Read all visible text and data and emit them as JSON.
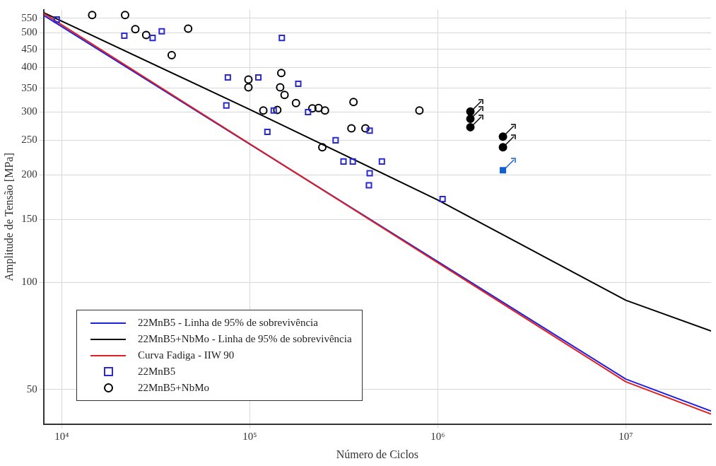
{
  "chart_data": {
    "type": "line",
    "xlabel": "Número de Ciclos",
    "ylabel": "Amplitude de Tensão [MPa]",
    "log": "xy",
    "grid": true,
    "legend": "bottom left",
    "line_style": "solid",
    "marker": "none",
    "xlim": [
      8000,
      28400000
    ],
    "ylim": [
      40,
      580
    ],
    "xticks": [
      {
        "value": 10000,
        "label": "10⁴"
      },
      {
        "value": 100000,
        "label": "10⁵"
      },
      {
        "value": 1000000,
        "label": "10⁶"
      },
      {
        "value": 10000000,
        "label": "10⁷"
      }
    ],
    "yticks": [
      50,
      100,
      150,
      200,
      250,
      300,
      350,
      400,
      450,
      500,
      550
    ],
    "series": [
      {
        "name": "22MnB5 - Linha de 95% de sobrevivência",
        "color": "#2020e0",
        "x": [
          8000,
          10000000,
          28400000
        ],
        "values": [
          560,
          53.5,
          43.5
        ]
      },
      {
        "name": "22MnB5+NbMo - Linha de 95% de sobrevivência",
        "color": "#000000",
        "x": [
          8000,
          100000,
          1000000,
          10000000,
          28400000
        ],
        "values": [
          570,
          305,
          170,
          89,
          73
        ]
      },
      {
        "name": "Curva Fadiga - IIW 90",
        "color": "#e02020",
        "x": [
          8000,
          10000000,
          28400000
        ],
        "values": [
          567,
          52.6,
          42.7
        ]
      },
      {
        "name": "22MnB5",
        "type": "scatter",
        "marker": "square",
        "color": "#2a2ad0",
        "x": [
          9400,
          21500,
          30400,
          34000,
          148000,
          76400,
          111000,
          75000,
          134000,
          181000,
          124000,
          204000,
          286000,
          315000,
          353000,
          434000,
          434000,
          430000,
          504000,
          1060000
        ],
        "values": [
          545,
          491,
          484,
          505,
          484,
          375,
          375,
          313,
          303,
          360,
          264,
          300,
          250,
          218,
          218,
          266,
          202,
          187,
          218,
          171
        ]
      },
      {
        "name": "22MnB5+NbMo",
        "type": "scatter",
        "marker": "circle",
        "color": "#000000",
        "x": [
          14500,
          21700,
          24600,
          28100,
          38400,
          47000,
          98300,
          98300,
          118000,
          140000,
          147000,
          145000,
          153000,
          176000,
          215000,
          232000,
          251000,
          243000,
          356000,
          347000,
          412000,
          798000
        ],
        "values": [
          561,
          561,
          512,
          493,
          433,
          514,
          370,
          352,
          303,
          304,
          386,
          352,
          335,
          318,
          307,
          308,
          303,
          239,
          320,
          270,
          270,
          303
        ]
      },
      {
        "type": "scatter",
        "marker": "circle",
        "color": "#000000",
        "x": [
          1490000,
          1490000,
          1490000,
          2220000,
          2220000
        ],
        "values": [
          301,
          287,
          272,
          256,
          239
        ]
      },
      {
        "type": "scatter",
        "marker": "square",
        "color": "#1060d0",
        "x": [
          2220000
        ],
        "values": [
          206
        ]
      }
    ]
  }
}
